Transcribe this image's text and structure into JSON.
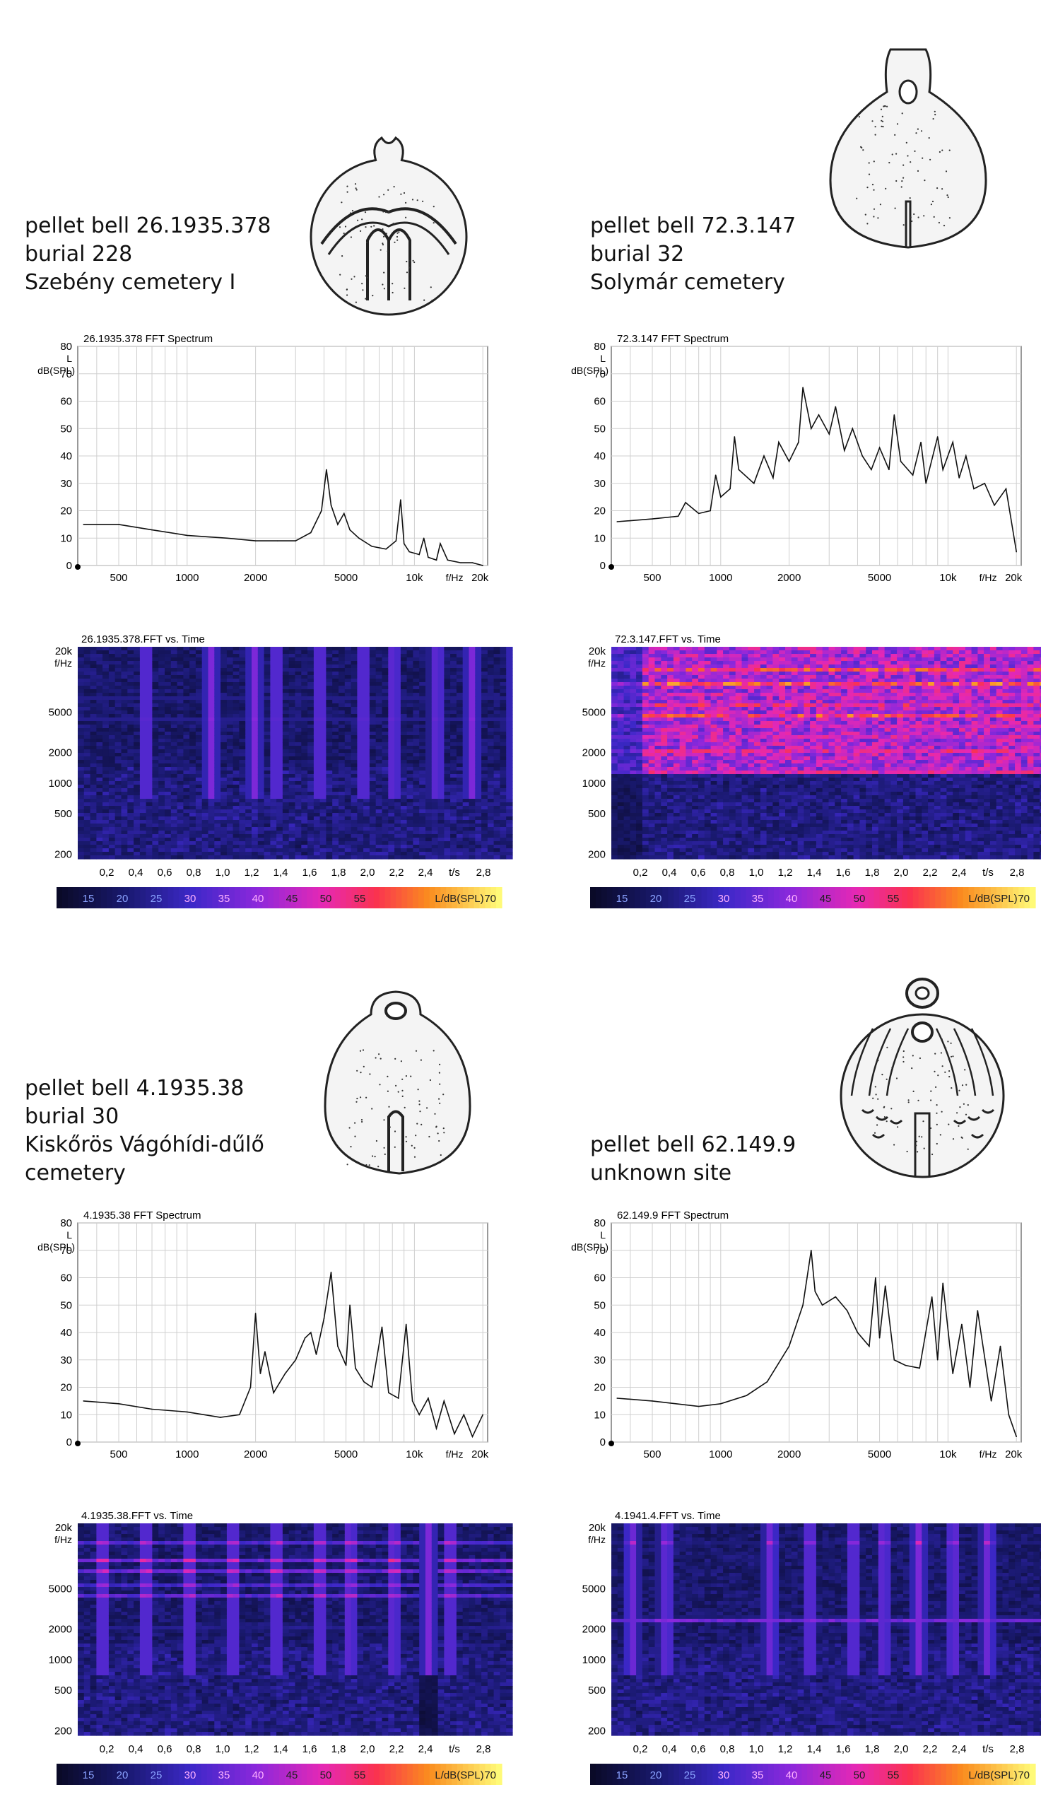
{
  "units": {
    "spectrum_y_label": [
      "80",
      "L",
      "dB(SPL)"
    ],
    "fhz": "f/Hz",
    "spec_yticks": [
      "20k",
      "5000",
      "2000",
      "1000",
      "500",
      "200"
    ],
    "time_unit": "t/s",
    "time_ticks": [
      "0,2",
      "0,4",
      "0,6",
      "0,8",
      "1,0",
      "1,2",
      "1,4",
      "1,6",
      "1,8",
      "2,0",
      "2,2",
      "2,4"
    ],
    "time_last": "2,8",
    "colorbar_ticks": [
      "15",
      "20",
      "25",
      "30",
      "35",
      "40",
      "45",
      "50",
      "55"
    ],
    "colorbar_unit": "L/dB(SPL)",
    "colorbar_max": "70"
  },
  "panels": [
    {
      "caption": [
        "pellet bell 26.1935.378",
        "burial 228",
        "Szebény cemetery I"
      ],
      "spectrum_title": "26.1935.378 FFT Spectrum",
      "spectrogram_title": "26.1935.378.FFT vs. Time",
      "bell_icon": "pomegranate-bell-drawing",
      "intensity": "low"
    },
    {
      "caption": [
        "pellet bell 72.3.147",
        "burial 32",
        "Solymár cemetery"
      ],
      "spectrum_title": "72.3.147 FFT Spectrum",
      "spectrogram_title": "72.3.147.FFT vs. Time",
      "bell_icon": "pear-bell-drawing",
      "intensity": "high"
    },
    {
      "caption": [
        "pellet bell 4.1935.38",
        "burial 30",
        "Kiskőrös Vágóhídi-dűlő",
        "cemetery"
      ],
      "spectrum_title": "4.1935.38 FFT Spectrum",
      "spectrogram_title": "4.1935.38.FFT vs. Time",
      "bell_icon": "round-bell-drawing",
      "intensity": "mid"
    },
    {
      "caption": [
        "pellet bell 62.149.9",
        "unknown site"
      ],
      "spectrum_title": "62.149.9 FFT Spectrum",
      "spectrogram_title": "4.1941.4.FFT vs. Time",
      "bell_icon": "decorated-bell-drawing",
      "intensity": "burst"
    }
  ],
  "chart_data": [
    {
      "type": "line",
      "title": "26.1935.378 FFT Spectrum",
      "xlabel": "f/Hz",
      "ylabel": "L dB(SPL)",
      "xscale": "log",
      "xticks": [
        "500",
        "1000",
        "2000",
        "5000",
        "10k",
        "20k"
      ],
      "yticks": [
        0,
        10,
        20,
        30,
        40,
        50,
        60,
        70,
        80
      ],
      "ylim": [
        0,
        80
      ],
      "grid": true,
      "x": [
        350,
        500,
        700,
        1000,
        1500,
        2000,
        2500,
        3000,
        3500,
        3900,
        4100,
        4300,
        4600,
        4900,
        5200,
        5700,
        6500,
        7500,
        8300,
        8700,
        9000,
        9500,
        10500,
        11000,
        11500,
        12500,
        13000,
        14000,
        16000,
        18000,
        20000
      ],
      "y": [
        15,
        15,
        13,
        11,
        10,
        9,
        9,
        9,
        12,
        20,
        35,
        22,
        15,
        19,
        13,
        10,
        7,
        6,
        9,
        24,
        8,
        5,
        4,
        10,
        3,
        2,
        8,
        2,
        1,
        1,
        0
      ]
    },
    {
      "type": "line",
      "title": "72.3.147 FFT Spectrum",
      "xlabel": "f/Hz",
      "ylabel": "L dB(SPL)",
      "xscale": "log",
      "xticks": [
        "500",
        "1000",
        "2000",
        "5000",
        "10k",
        "20k"
      ],
      "yticks": [
        0,
        10,
        20,
        30,
        40,
        50,
        60,
        70,
        80
      ],
      "ylim": [
        0,
        80
      ],
      "grid": true,
      "x": [
        350,
        500,
        650,
        700,
        800,
        900,
        950,
        1000,
        1100,
        1150,
        1200,
        1400,
        1550,
        1700,
        1800,
        2000,
        2200,
        2300,
        2500,
        2700,
        3000,
        3200,
        3500,
        3800,
        4200,
        4600,
        5000,
        5500,
        5800,
        6200,
        7000,
        7600,
        8000,
        9000,
        9500,
        10500,
        11200,
        12000,
        13000,
        14500,
        16000,
        18000,
        20000
      ],
      "y": [
        16,
        17,
        18,
        23,
        19,
        20,
        33,
        25,
        28,
        47,
        35,
        30,
        40,
        32,
        45,
        38,
        45,
        65,
        50,
        55,
        48,
        58,
        42,
        50,
        40,
        35,
        43,
        35,
        55,
        38,
        33,
        45,
        30,
        47,
        35,
        45,
        32,
        40,
        28,
        30,
        22,
        28,
        5
      ]
    },
    {
      "type": "line",
      "title": "4.1935.38 FFT Spectrum",
      "xlabel": "f/Hz",
      "ylabel": "L dB(SPL)",
      "xscale": "log",
      "xticks": [
        "500",
        "1000",
        "2000",
        "5000",
        "10k",
        "20k"
      ],
      "yticks": [
        0,
        10,
        20,
        30,
        40,
        50,
        60,
        70,
        80
      ],
      "ylim": [
        0,
        80
      ],
      "grid": true,
      "x": [
        350,
        500,
        700,
        1000,
        1400,
        1700,
        1900,
        2000,
        2100,
        2200,
        2400,
        2700,
        3000,
        3300,
        3500,
        3700,
        4000,
        4300,
        4600,
        5000,
        5200,
        5500,
        6000,
        6500,
        7200,
        7700,
        8500,
        9200,
        9800,
        10500,
        11500,
        12500,
        13500,
        15000,
        16500,
        18000,
        20000
      ],
      "y": [
        15,
        14,
        12,
        11,
        9,
        10,
        20,
        47,
        25,
        33,
        18,
        25,
        30,
        38,
        40,
        32,
        45,
        62,
        35,
        28,
        50,
        27,
        22,
        20,
        42,
        18,
        16,
        43,
        15,
        10,
        16,
        5,
        15,
        3,
        10,
        2,
        10
      ]
    },
    {
      "type": "line",
      "title": "62.149.9 FFT Spectrum",
      "xlabel": "f/Hz",
      "ylabel": "L dB(SPL)",
      "xscale": "log",
      "xticks": [
        "500",
        "1000",
        "2000",
        "5000",
        "10k",
        "20k"
      ],
      "yticks": [
        0,
        10,
        20,
        30,
        40,
        50,
        60,
        70,
        80
      ],
      "ylim": [
        0,
        80
      ],
      "grid": true,
      "x": [
        350,
        500,
        800,
        1000,
        1300,
        1600,
        2000,
        2300,
        2500,
        2600,
        2800,
        3200,
        3600,
        4000,
        4500,
        4800,
        5000,
        5300,
        5800,
        6500,
        7500,
        8500,
        9000,
        9500,
        10500,
        11500,
        12500,
        13500,
        15500,
        17000,
        18500,
        20000
      ],
      "y": [
        16,
        15,
        13,
        14,
        17,
        22,
        35,
        50,
        70,
        55,
        50,
        53,
        48,
        40,
        35,
        60,
        38,
        57,
        30,
        28,
        27,
        53,
        30,
        58,
        25,
        43,
        20,
        48,
        15,
        35,
        10,
        2
      ]
    }
  ]
}
